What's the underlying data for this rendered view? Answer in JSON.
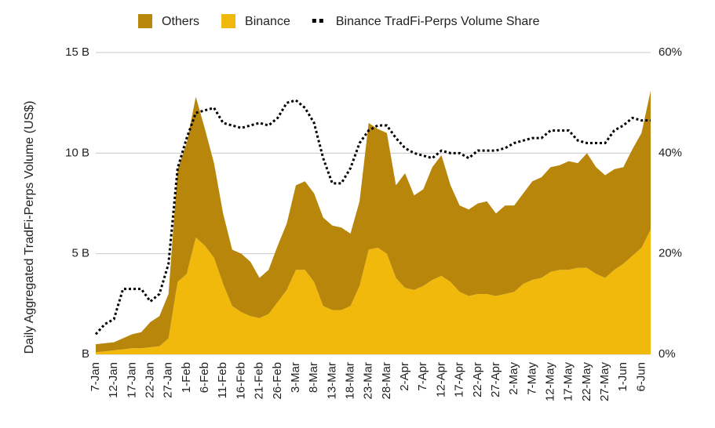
{
  "chart_data": {
    "type": "stacked_area_line",
    "y_label": "Daily Aggregated TradFi-Perps Volume (US$)",
    "categories": [
      "7-Jan",
      null,
      "12-Jan",
      null,
      "17-Jan",
      null,
      "22-Jan",
      null,
      "27-Jan",
      null,
      "1-Feb",
      null,
      "6-Feb",
      null,
      "11-Feb",
      null,
      "16-Feb",
      null,
      "21-Feb",
      null,
      "26-Feb",
      null,
      "3-Mar",
      null,
      "8-Mar",
      null,
      "13-Mar",
      null,
      "18-Mar",
      null,
      "23-Mar",
      null,
      "28-Mar",
      null,
      "2-Apr",
      null,
      "7-Apr",
      null,
      "12-Apr",
      null,
      "17-Apr",
      null,
      "22-Apr",
      null,
      "27-Apr",
      null,
      "2-May",
      null,
      "7-May",
      null,
      "12-May",
      null,
      "17-May",
      null,
      "22-May",
      null,
      "27-May",
      null,
      "1-Jun",
      null,
      "6-Jun",
      null
    ],
    "series": [
      {
        "name": "Others",
        "color": "#b8860b",
        "kind": "area",
        "values": [
          0.4,
          0.4,
          0.4,
          0.55,
          0.7,
          0.8,
          1.25,
          1.5,
          2.2,
          5.6,
          6.5,
          7.0,
          5.8,
          4.7,
          3.5,
          2.8,
          2.9,
          2.7,
          2.0,
          2.2,
          2.8,
          3.3,
          4.2,
          4.4,
          4.4,
          4.4,
          4.2,
          4.1,
          3.6,
          4.2,
          6.3,
          5.9,
          6.0,
          4.6,
          5.7,
          4.7,
          4.8,
          5.6,
          6.0,
          4.8,
          4.3,
          4.3,
          4.5,
          4.6,
          4.1,
          4.4,
          4.3,
          4.5,
          4.9,
          5.0,
          5.2,
          5.2,
          5.4,
          5.2,
          5.7,
          5.3,
          5.1,
          5.0,
          4.8,
          5.3,
          5.7,
          6.9
        ]
      },
      {
        "name": "Binance",
        "color": "#f0b90b",
        "kind": "area",
        "values": [
          0.1,
          0.15,
          0.2,
          0.25,
          0.3,
          0.3,
          0.35,
          0.4,
          0.8,
          3.6,
          4.0,
          5.8,
          5.4,
          4.8,
          3.5,
          2.4,
          2.1,
          1.9,
          1.8,
          2.0,
          2.6,
          3.2,
          4.2,
          4.2,
          3.6,
          2.4,
          2.2,
          2.2,
          2.4,
          3.4,
          5.2,
          5.3,
          5.0,
          3.8,
          3.3,
          3.2,
          3.4,
          3.7,
          3.9,
          3.6,
          3.1,
          2.9,
          3.0,
          3.0,
          2.9,
          3.0,
          3.1,
          3.5,
          3.7,
          3.8,
          4.1,
          4.2,
          4.2,
          4.3,
          4.3,
          4.0,
          3.8,
          4.2,
          4.5,
          4.9,
          5.3,
          6.2
        ]
      },
      {
        "name": "Binance TradFi-Perps Volume Share",
        "color": "#000000",
        "kind": "line",
        "axis": "y2",
        "values": [
          4,
          6,
          7,
          13,
          13,
          13,
          10.5,
          12,
          18,
          37,
          43,
          48,
          48.5,
          49,
          46,
          45.5,
          45,
          45.5,
          46,
          45.5,
          47,
          50,
          50.5,
          49,
          46,
          39,
          34,
          34,
          37,
          42,
          44.5,
          45.5,
          45.5,
          43,
          41,
          40,
          39.5,
          39,
          40.5,
          40,
          40,
          39,
          40.5,
          40.5,
          40.5,
          41,
          42,
          42.5,
          43,
          43,
          44.5,
          44.5,
          44.5,
          42.5,
          42,
          42,
          42,
          44.5,
          45.5,
          47,
          46.5,
          46.5
        ]
      }
    ],
    "ylim": [
      0,
      15
    ],
    "yticks": [
      {
        "value": 0,
        "label": "B"
      },
      {
        "value": 5,
        "label": "5 B"
      },
      {
        "value": 10,
        "label": "10 B"
      },
      {
        "value": 15,
        "label": "15 B"
      }
    ],
    "y2lim": [
      0,
      60
    ],
    "y2ticks": [
      {
        "value": 0,
        "label": "0%"
      },
      {
        "value": 20,
        "label": "20%"
      },
      {
        "value": 40,
        "label": "40%"
      },
      {
        "value": 60,
        "label": "60%"
      }
    ],
    "grid": true,
    "legend": "top"
  }
}
